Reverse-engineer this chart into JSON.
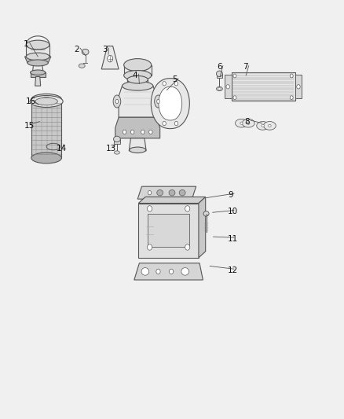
{
  "bg": "#f0f0f0",
  "lc": "#555555",
  "lc_dark": "#333333",
  "lw": 0.8,
  "fs": 7.5,
  "label_leader": [
    [
      1,
      0.068,
      0.895,
      0.11,
      0.865
    ],
    [
      2,
      0.215,
      0.882,
      0.248,
      0.868
    ],
    [
      3,
      0.298,
      0.882,
      0.315,
      0.87
    ],
    [
      4,
      0.385,
      0.82,
      0.405,
      0.8
    ],
    [
      5,
      0.5,
      0.81,
      0.485,
      0.785
    ],
    [
      6,
      0.63,
      0.84,
      0.64,
      0.818
    ],
    [
      7,
      0.705,
      0.84,
      0.715,
      0.82
    ],
    [
      8,
      0.71,
      0.71,
      0.762,
      0.706
    ],
    [
      9,
      0.662,
      0.535,
      0.6,
      0.528
    ],
    [
      10,
      0.662,
      0.495,
      0.618,
      0.493
    ],
    [
      11,
      0.662,
      0.43,
      0.62,
      0.435
    ],
    [
      12,
      0.662,
      0.355,
      0.61,
      0.365
    ],
    [
      13,
      0.308,
      0.645,
      0.335,
      0.655
    ],
    [
      14,
      0.165,
      0.645,
      0.185,
      0.655
    ],
    [
      15,
      0.07,
      0.7,
      0.115,
      0.71
    ],
    [
      16,
      0.075,
      0.758,
      0.112,
      0.75
    ]
  ]
}
